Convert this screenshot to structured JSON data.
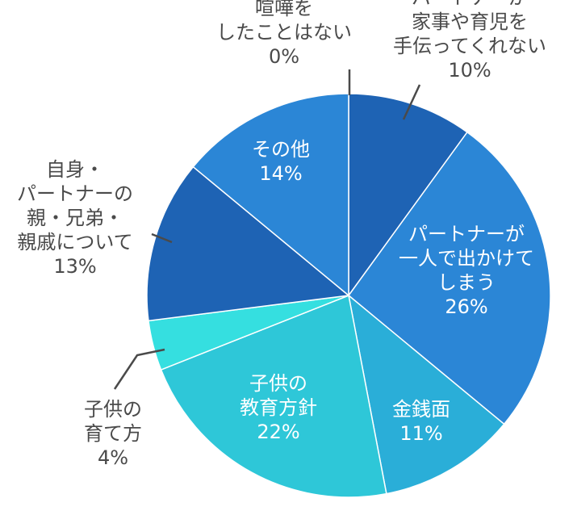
{
  "chart_data": {
    "type": "pie",
    "start_angle_deg": 0,
    "direction": "clockwise",
    "slices": [
      {
        "label_lines": [
          "喧嘩を",
          "したことはない"
        ],
        "value_label": "0%",
        "value": 0,
        "color": "#2b86d6",
        "label_position": "outside"
      },
      {
        "label_lines": [
          "パートナーが",
          "家事や育児を",
          "手伝ってくれない"
        ],
        "value_label": "10%",
        "value": 10,
        "color": "#1e63b4",
        "label_position": "outside"
      },
      {
        "label_lines": [
          "パートナーが",
          "一人で出かけて",
          "しまう"
        ],
        "value_label": "26%",
        "value": 26,
        "color": "#2b86d6",
        "label_position": "inside"
      },
      {
        "label_lines": [
          "金銭面"
        ],
        "value_label": "11%",
        "value": 11,
        "color": "#2aaed8",
        "label_position": "inside"
      },
      {
        "label_lines": [
          "子供の",
          "教育方針"
        ],
        "value_label": "22%",
        "value": 22,
        "color": "#2ec7d8",
        "label_position": "inside"
      },
      {
        "label_lines": [
          "子供の",
          "育て方"
        ],
        "value_label": "4%",
        "value": 4,
        "color": "#35dfe0",
        "label_position": "outside"
      },
      {
        "label_lines": [
          "自身・",
          "パートナーの",
          "親・兄弟・",
          "親戚について"
        ],
        "value_label": "13%",
        "value": 13,
        "color": "#1e63b4",
        "label_position": "outside"
      },
      {
        "label_lines": [
          "その他"
        ],
        "value_label": "14%",
        "value": 14,
        "color": "#2b86d6",
        "label_position": "inside"
      }
    ]
  }
}
